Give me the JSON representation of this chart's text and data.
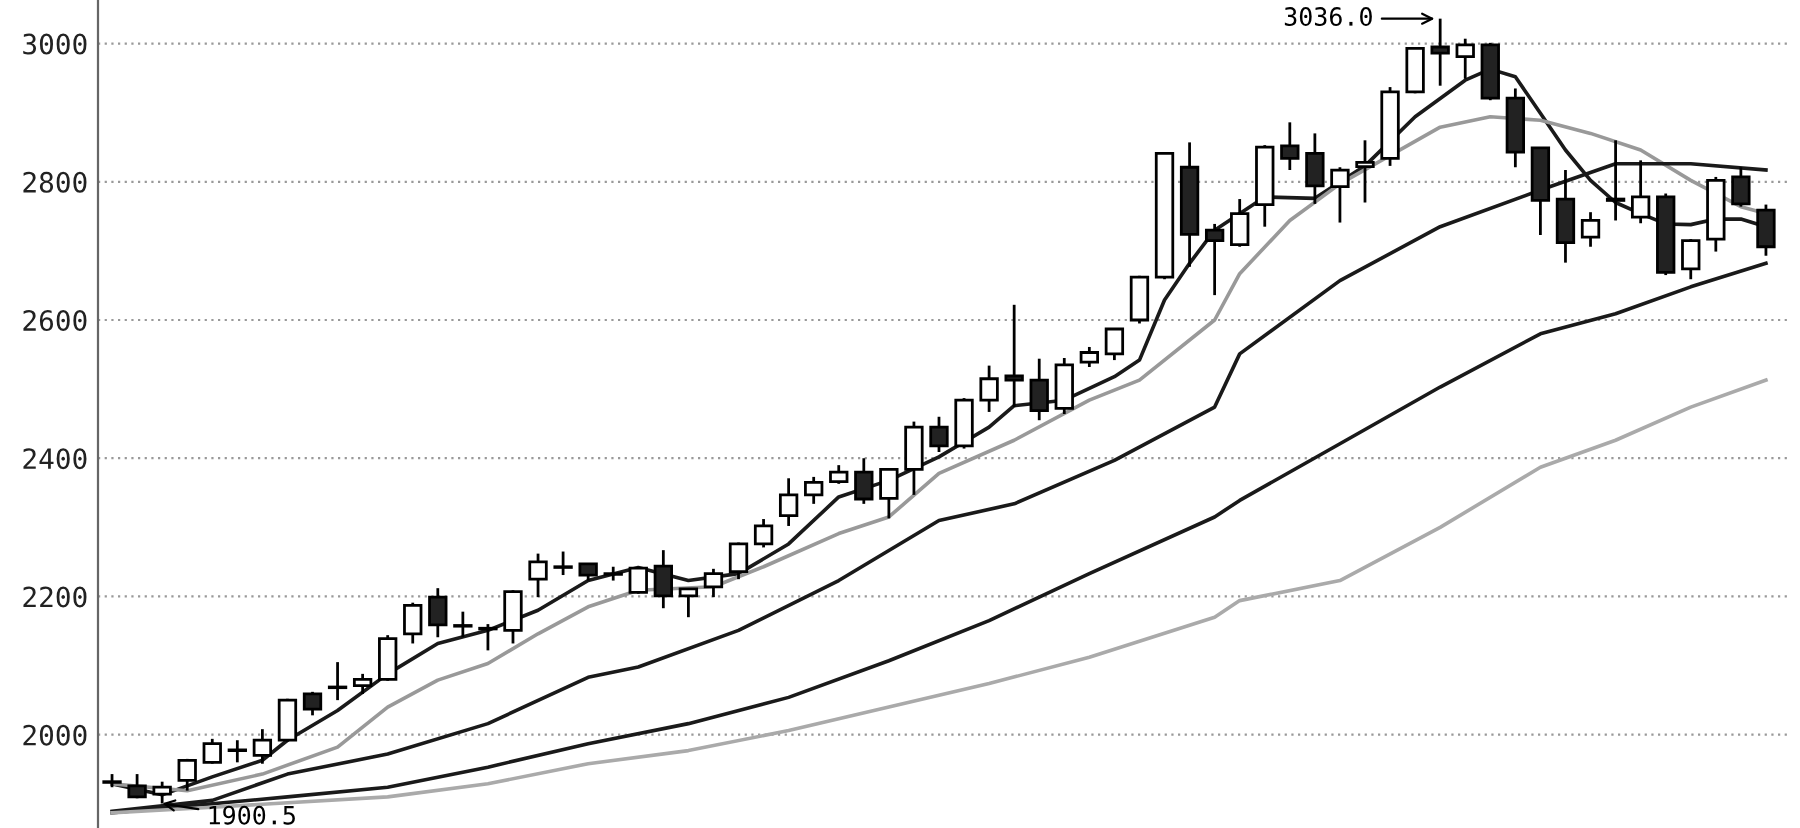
{
  "chart_data": {
    "type": "candlestick",
    "categories": [
      null,
      null,
      null,
      null,
      null,
      null,
      null,
      null,
      null,
      null,
      null,
      null,
      null,
      null,
      null,
      null,
      null,
      null,
      null,
      null,
      null,
      null,
      null,
      null,
      null,
      null,
      null,
      null,
      null,
      null,
      null,
      null,
      null,
      null,
      null,
      null,
      null,
      null,
      null,
      null,
      null,
      null,
      null,
      null,
      null,
      null,
      null,
      null,
      null,
      null,
      null,
      null,
      null,
      null,
      null,
      null,
      null,
      null,
      null,
      null,
      null,
      null,
      null,
      null,
      null,
      null,
      null
    ],
    "ohlc": [
      [
        1932,
        1943,
        1924,
        1931
      ],
      [
        1926,
        1943,
        1908,
        1910
      ],
      [
        1914,
        1932,
        1900.5,
        1924
      ],
      [
        1934,
        1965,
        1919,
        1963
      ],
      [
        1960,
        1994,
        1958,
        1987
      ],
      [
        1977,
        1992,
        1960,
        1978
      ],
      [
        1970,
        2008,
        1958,
        1992
      ],
      [
        1992,
        2052,
        1990,
        2050
      ],
      [
        2059,
        2062,
        2028,
        2037
      ],
      [
        2068,
        2105,
        2050,
        2069
      ],
      [
        2071,
        2088,
        2059,
        2080
      ],
      [
        2080,
        2144,
        2078,
        2139
      ],
      [
        2146,
        2191,
        2132,
        2187
      ],
      [
        2199,
        2212,
        2141,
        2159
      ],
      [
        2158,
        2178,
        2141,
        2157
      ],
      [
        2154,
        2160,
        2122,
        2153
      ],
      [
        2151,
        2209,
        2132,
        2207
      ],
      [
        2225,
        2262,
        2199,
        2250
      ],
      [
        2243,
        2265,
        2231,
        2242
      ],
      [
        2247,
        2248,
        2223,
        2231
      ],
      [
        2233,
        2243,
        2223,
        2232
      ],
      [
        2206,
        2243,
        2204,
        2241
      ],
      [
        2244,
        2267,
        2183,
        2201
      ],
      [
        2201,
        2212,
        2170,
        2211
      ],
      [
        2214,
        2240,
        2199,
        2233
      ],
      [
        2236,
        2278,
        2225,
        2276
      ],
      [
        2276,
        2312,
        2271,
        2302
      ],
      [
        2317,
        2371,
        2302,
        2347
      ],
      [
        2347,
        2373,
        2334,
        2365
      ],
      [
        2366,
        2390,
        2363,
        2380
      ],
      [
        2380,
        2400,
        2334,
        2341
      ],
      [
        2342,
        2385,
        2313,
        2384
      ],
      [
        2384,
        2453,
        2347,
        2445
      ],
      [
        2445,
        2460,
        2409,
        2418
      ],
      [
        2418,
        2487,
        2414,
        2484
      ],
      [
        2484,
        2534,
        2467,
        2515
      ],
      [
        2519,
        2622,
        2474,
        2513
      ],
      [
        2513,
        2544,
        2455,
        2469
      ],
      [
        2472,
        2545,
        2464,
        2535
      ],
      [
        2539,
        2561,
        2532,
        2553
      ],
      [
        2551,
        2588,
        2542,
        2587
      ],
      [
        2600,
        2664,
        2595,
        2662
      ],
      [
        2662,
        2843,
        2659,
        2841
      ],
      [
        2821,
        2857,
        2677,
        2724
      ],
      [
        2730,
        2739,
        2636,
        2715
      ],
      [
        2709,
        2775,
        2706,
        2754
      ],
      [
        2767,
        2853,
        2735,
        2850
      ],
      [
        2852,
        2886,
        2817,
        2834
      ],
      [
        2841,
        2870,
        2768,
        2794
      ],
      [
        2793,
        2821,
        2741,
        2817
      ],
      [
        2822,
        2860,
        2770,
        2828
      ],
      [
        2834,
        2937,
        2823,
        2930
      ],
      [
        2930,
        2995,
        2928,
        2993
      ],
      [
        2995,
        3036,
        2939,
        2986
      ],
      [
        2981,
        3007,
        2949,
        2998
      ],
      [
        2998,
        3001,
        2918,
        2921
      ],
      [
        2921,
        2935,
        2821,
        2843
      ],
      [
        2849,
        2850,
        2723,
        2773
      ],
      [
        2775,
        2817,
        2683,
        2712
      ],
      [
        2720,
        2756,
        2706,
        2744
      ],
      [
        2775,
        2860,
        2744,
        2773
      ],
      [
        2749,
        2831,
        2740,
        2778
      ],
      [
        2778,
        2783,
        2665,
        2669
      ],
      [
        2674,
        2717,
        2659,
        2715
      ],
      [
        2717,
        2807,
        2699,
        2802
      ],
      [
        2807,
        2821,
        2764,
        2768
      ],
      [
        2759,
        2767,
        2693,
        2706
      ]
    ],
    "series": [
      {
        "type": "line",
        "color": "#1a1a1a",
        "values": [
          1929,
          null,
          1913,
          null,
          1939,
          null,
          1963,
          1992,
          null,
          2035,
          null,
          2088,
          null,
          2132,
          null,
          2151,
          null,
          2180,
          null,
          2223,
          null,
          2242,
          null,
          2223,
          null,
          2233,
          null,
          2276,
          null,
          2344,
          null,
          2368,
          null,
          2402,
          null,
          2445,
          2476,
          null,
          2484,
          null,
          2518,
          2542,
          2629,
          2682,
          2730,
          null,
          2778,
          null,
          2776,
          null,
          2823,
          null,
          2894,
          null,
          2947,
          2963,
          2952,
          2899,
          2846,
          2802,
          2770,
          2754,
          2739,
          2738,
          2746,
          2746,
          2735
        ]
      },
      {
        "type": "line",
        "color": "#999999",
        "values": [
          1929,
          null,
          null,
          1919,
          null,
          null,
          1943,
          null,
          null,
          1982,
          null,
          2040,
          null,
          2079,
          null,
          2103,
          null,
          2146,
          null,
          2185,
          null,
          2209,
          null,
          null,
          2214,
          null,
          2243,
          null,
          null,
          2291,
          null,
          2315,
          null,
          2378,
          null,
          null,
          2426,
          null,
          null,
          2484,
          null,
          2513,
          null,
          null,
          2600,
          2667,
          null,
          2744,
          null,
          2797,
          null,
          null,
          null,
          2879,
          null,
          2894,
          null,
          2889,
          null,
          2870,
          null,
          2846,
          null,
          2802,
          null,
          2764,
          2754
        ]
      },
      {
        "type": "line",
        "color": "#1a1a1a",
        "values": [
          1889,
          null,
          null,
          null,
          1905,
          null,
          null,
          1943,
          null,
          null,
          null,
          1972,
          null,
          null,
          null,
          2016,
          null,
          null,
          null,
          2083,
          null,
          2098,
          null,
          null,
          null,
          2151,
          null,
          null,
          null,
          2223,
          null,
          null,
          null,
          2310,
          null,
          null,
          2334,
          null,
          null,
          null,
          2397,
          null,
          null,
          null,
          2474,
          2551,
          null,
          null,
          null,
          2657,
          null,
          null,
          null,
          2735,
          null,
          null,
          null,
          2788,
          null,
          null,
          2826,
          null,
          null,
          2826,
          null,
          null,
          2817
        ]
      },
      {
        "type": "line",
        "color": "#1a1a1a",
        "values": [
          1887,
          null,
          null,
          null,
          1900,
          null,
          null,
          1910,
          null,
          null,
          null,
          1924,
          null,
          null,
          null,
          1953,
          null,
          null,
          null,
          1987,
          null,
          null,
          null,
          2016,
          null,
          null,
          null,
          2054,
          null,
          null,
          null,
          2107,
          null,
          null,
          null,
          2165,
          null,
          null,
          null,
          2233,
          null,
          null,
          null,
          null,
          2315,
          2339,
          null,
          null,
          null,
          2421,
          null,
          null,
          null,
          2503,
          null,
          null,
          null,
          2580,
          null,
          null,
          2609,
          null,
          null,
          2648,
          null,
          null,
          2682
        ]
      },
      {
        "type": "line",
        "color": "#aaaaaa",
        "values": [
          1887,
          null,
          null,
          null,
          1895,
          null,
          null,
          null,
          null,
          null,
          null,
          1910,
          null,
          null,
          null,
          1929,
          null,
          null,
          null,
          1958,
          null,
          null,
          null,
          1977,
          null,
          null,
          null,
          2006,
          null,
          null,
          null,
          2040,
          null,
          null,
          null,
          2074,
          null,
          null,
          null,
          2112,
          null,
          null,
          null,
          null,
          2170,
          2194,
          null,
          null,
          null,
          2223,
          null,
          null,
          null,
          2300,
          null,
          null,
          null,
          2387,
          null,
          null,
          2426,
          null,
          null,
          2474,
          null,
          null,
          2513
        ]
      }
    ],
    "ylim": [
      1865,
      3063
    ],
    "yticks": [
      2000,
      2200,
      2400,
      2600,
      2800,
      3000
    ],
    "grid": "y",
    "tick_labels": "y",
    "annotations": [
      "3036.0",
      {
        "text": "1900.5",
        "y": 1900.5
      }
    ]
  }
}
